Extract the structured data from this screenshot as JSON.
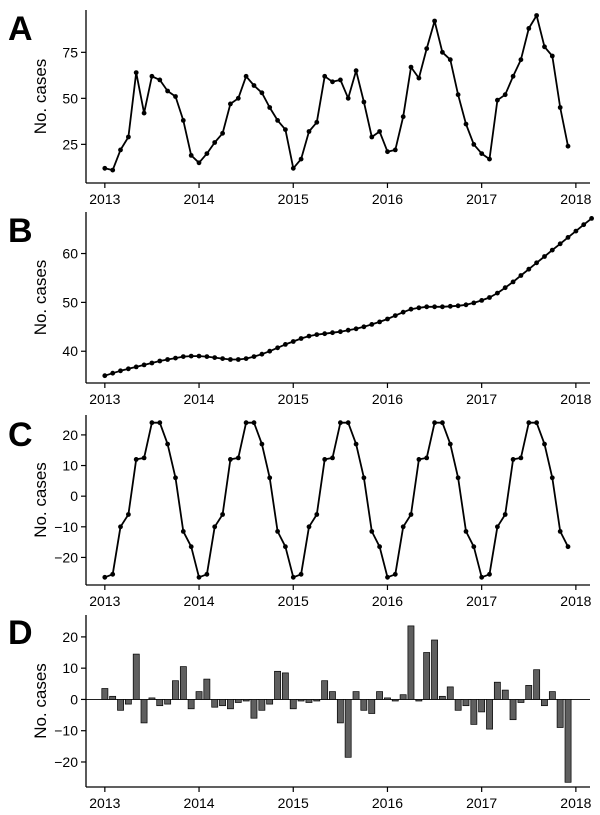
{
  "chart_data": [
    {
      "panel": "A",
      "type": "line",
      "title": "",
      "xlabel": "",
      "ylabel": "No. cases",
      "xlim": [
        2012.8,
        2018.15
      ],
      "ylim": [
        4,
        98
      ],
      "x_ticks": [
        2013,
        2014,
        2015,
        2016,
        2017,
        2018
      ],
      "y_ticks": [
        25,
        50,
        75
      ],
      "start_year": 2013,
      "values": [
        12,
        11,
        22,
        29,
        64,
        42,
        62,
        60,
        54,
        51,
        38,
        19,
        15,
        20,
        26,
        31,
        47,
        50,
        62,
        57,
        53,
        45,
        38,
        33,
        12,
        17,
        32,
        37,
        62,
        59,
        60,
        50,
        65,
        48,
        29,
        32,
        21,
        22,
        40,
        67,
        61,
        77,
        92,
        75,
        71,
        52,
        36,
        25,
        20,
        17,
        49,
        52,
        62,
        71,
        88,
        95,
        78,
        73,
        45,
        24
      ]
    },
    {
      "panel": "B",
      "type": "line",
      "title": "",
      "xlabel": "",
      "ylabel": "No. cases",
      "xlim": [
        2012.8,
        2018.15
      ],
      "ylim": [
        33.5,
        68.5
      ],
      "x_ticks": [
        2013,
        2014,
        2015,
        2016,
        2017,
        2018
      ],
      "y_ticks": [
        40,
        50,
        60
      ],
      "start_year": 2013,
      "values": [
        35.0,
        35.5,
        36.0,
        36.4,
        36.8,
        37.2,
        37.6,
        38.0,
        38.3,
        38.6,
        38.9,
        39.0,
        39.0,
        38.9,
        38.7,
        38.5,
        38.3,
        38.3,
        38.5,
        38.9,
        39.4,
        40.0,
        40.7,
        41.4,
        42.0,
        42.6,
        43.1,
        43.4,
        43.6,
        43.8,
        44.0,
        44.3,
        44.6,
        45.0,
        45.5,
        46.0,
        46.6,
        47.3,
        48.0,
        48.6,
        48.9,
        49.1,
        49.1,
        49.1,
        49.2,
        49.3,
        49.5,
        49.9,
        50.4,
        51.0,
        51.9,
        53.0,
        54.2,
        55.5,
        56.8,
        58.1,
        59.4,
        60.7,
        62.0,
        63.3,
        64.6,
        65.9,
        67.2
      ]
    },
    {
      "panel": "C",
      "type": "line",
      "title": "",
      "xlabel": "",
      "ylabel": "No. cases",
      "xlim": [
        2012.8,
        2018.15
      ],
      "ylim": [
        -29,
        26.5
      ],
      "x_ticks": [
        2013,
        2014,
        2015,
        2016,
        2017,
        2018
      ],
      "y_ticks": [
        -20,
        -10,
        0,
        10,
        20
      ],
      "start_year": 2013,
      "values": [
        -26.5,
        -25.5,
        -10,
        -6,
        12,
        12.5,
        24,
        24,
        17,
        6,
        -11.5,
        -16.5
      ]
    },
    {
      "panel": "D",
      "type": "bar",
      "title": "",
      "xlabel": "",
      "ylabel": "No. cases",
      "xlim": [
        2012.8,
        2018.15
      ],
      "ylim": [
        -28,
        27
      ],
      "x_ticks": [
        2013,
        2014,
        2015,
        2016,
        2017,
        2018
      ],
      "y_ticks": [
        -20,
        -10,
        0,
        10,
        20
      ],
      "start_year": 2013,
      "values": [
        3.5,
        1,
        -3.5,
        -1.5,
        14.5,
        -7.5,
        0.5,
        -2,
        -1.5,
        6,
        10.5,
        -3,
        2.5,
        6.5,
        -2.5,
        -2,
        -3,
        -1,
        -0.5,
        -6,
        -3.5,
        -1.5,
        9,
        8.5,
        -3,
        -0.5,
        -1,
        -0.5,
        6,
        2.5,
        -7.5,
        -18.5,
        2.5,
        -3.5,
        -4.5,
        2.5,
        0.5,
        -0.5,
        1.5,
        23.5,
        -0.5,
        15,
        19,
        1,
        4,
        -3.5,
        -2,
        -8,
        -4,
        -9.5,
        5.5,
        3,
        -6.5,
        -1,
        4.5,
        9.5,
        -2,
        2.5,
        -9,
        -26.5
      ]
    }
  ]
}
